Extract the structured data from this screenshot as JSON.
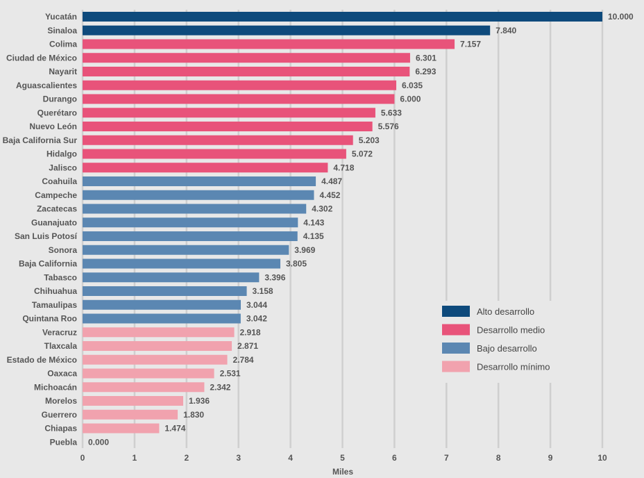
{
  "chart_data": {
    "type": "bar",
    "orientation": "horizontal",
    "xlabel": "Miles",
    "xlim": [
      0,
      10
    ],
    "xticks": [
      "0",
      "1",
      "2",
      "3",
      "4",
      "5",
      "6",
      "7",
      "8",
      "9",
      "10"
    ],
    "grid": "vertical",
    "legend_position": "right",
    "legend": [
      {
        "name": "Alto desarrollo",
        "color": "#0e4a7c"
      },
      {
        "name": "Desarrollo medio",
        "color": "#e8537a"
      },
      {
        "name": "Bajo desarrollo",
        "color": "#5b87b2"
      },
      {
        "name": "Desarrollo mínimo",
        "color": "#f1a2ae"
      }
    ],
    "bars": [
      {
        "category": "Yucatán",
        "value": 10.0,
        "label": "10.000",
        "group": 0
      },
      {
        "category": "Sinaloa",
        "value": 7.84,
        "label": "7.840",
        "group": 0
      },
      {
        "category": "Colima",
        "value": 7.157,
        "label": "7.157",
        "group": 1
      },
      {
        "category": "Ciudad de México",
        "value": 6.301,
        "label": "6.301",
        "group": 1
      },
      {
        "category": "Nayarit",
        "value": 6.293,
        "label": "6.293",
        "group": 1
      },
      {
        "category": "Aguascalientes",
        "value": 6.035,
        "label": "6.035",
        "group": 1
      },
      {
        "category": "Durango",
        "value": 6.0,
        "label": "6.000",
        "group": 1
      },
      {
        "category": "Querétaro",
        "value": 5.633,
        "label": "5.633",
        "group": 1
      },
      {
        "category": "Nuevo León",
        "value": 5.576,
        "label": "5.576",
        "group": 1
      },
      {
        "category": "Baja California Sur",
        "value": 5.203,
        "label": "5.203",
        "group": 1
      },
      {
        "category": "Hidalgo",
        "value": 5.072,
        "label": "5.072",
        "group": 1
      },
      {
        "category": "Jalisco",
        "value": 4.718,
        "label": "4.718",
        "group": 1
      },
      {
        "category": "Coahuila",
        "value": 4.487,
        "label": "4.487",
        "group": 2
      },
      {
        "category": "Campeche",
        "value": 4.452,
        "label": "4.452",
        "group": 2
      },
      {
        "category": "Zacatecas",
        "value": 4.302,
        "label": "4.302",
        "group": 2
      },
      {
        "category": "Guanajuato",
        "value": 4.143,
        "label": "4.143",
        "group": 2
      },
      {
        "category": "San Luis Potosí",
        "value": 4.135,
        "label": "4.135",
        "group": 2
      },
      {
        "category": "Sonora",
        "value": 3.969,
        "label": "3.969",
        "group": 2
      },
      {
        "category": "Baja California",
        "value": 3.805,
        "label": "3.805",
        "group": 2
      },
      {
        "category": "Tabasco",
        "value": 3.396,
        "label": "3.396",
        "group": 2
      },
      {
        "category": "Chihuahua",
        "value": 3.158,
        "label": "3.158",
        "group": 2
      },
      {
        "category": "Tamaulipas",
        "value": 3.044,
        "label": "3.044",
        "group": 2
      },
      {
        "category": "Quintana Roo",
        "value": 3.042,
        "label": "3.042",
        "group": 2
      },
      {
        "category": "Veracruz",
        "value": 2.918,
        "label": "2.918",
        "group": 3
      },
      {
        "category": "Tlaxcala",
        "value": 2.871,
        "label": "2.871",
        "group": 3
      },
      {
        "category": "Estado de México",
        "value": 2.784,
        "label": "2.784",
        "group": 3
      },
      {
        "category": "Oaxaca",
        "value": 2.531,
        "label": "2.531",
        "group": 3
      },
      {
        "category": "Michoacán",
        "value": 2.342,
        "label": "2.342",
        "group": 3
      },
      {
        "category": "Morelos",
        "value": 1.936,
        "label": "1.936",
        "group": 3
      },
      {
        "category": "Guerrero",
        "value": 1.83,
        "label": "1.830",
        "group": 3
      },
      {
        "category": "Chiapas",
        "value": 1.474,
        "label": "1.474",
        "group": 3
      },
      {
        "category": "Puebla",
        "value": 0.0,
        "label": "0.000",
        "group": 3
      }
    ]
  }
}
